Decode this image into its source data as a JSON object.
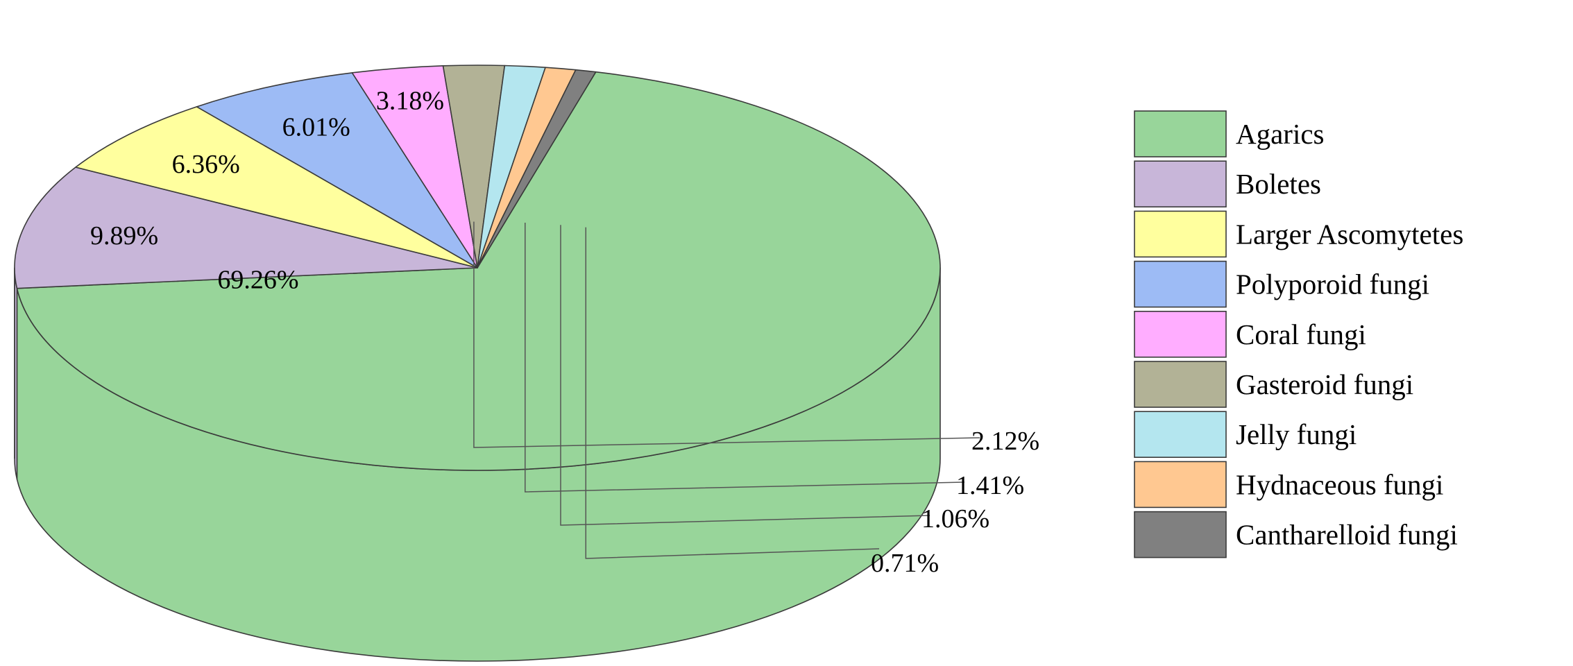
{
  "chart_data": {
    "type": "pie",
    "style": "3d",
    "title": "",
    "slices": [
      {
        "label": "Agarics",
        "value": 69.26,
        "value_label": "69.26%",
        "color": "#98D59A"
      },
      {
        "label": "Boletes",
        "value": 9.89,
        "value_label": "9.89%",
        "color": "#C8B6D9"
      },
      {
        "label": "Larger Ascomytetes",
        "value": 6.36,
        "value_label": "6.36%",
        "color": "#FFFF9E"
      },
      {
        "label": "Polyporoid fungi",
        "value": 6.01,
        "value_label": "6.01%",
        "color": "#9DBBF5"
      },
      {
        "label": "Coral fungi",
        "value": 3.18,
        "value_label": "3.18%",
        "color": "#FFADFF"
      },
      {
        "label": "Gasteroid fungi",
        "value": 2.12,
        "value_label": "2.12%",
        "color": "#B2B296"
      },
      {
        "label": "Jelly fungi",
        "value": 1.41,
        "value_label": "1.41%",
        "color": "#B4E6EF"
      },
      {
        "label": "Hydnaceous fungi",
        "value": 1.06,
        "value_label": "1.06%",
        "color": "#FFC891"
      },
      {
        "label": "Cantharelloid fungi",
        "value": 0.71,
        "value_label": "0.71%",
        "color": "#808080"
      }
    ],
    "legend_position": "right"
  }
}
